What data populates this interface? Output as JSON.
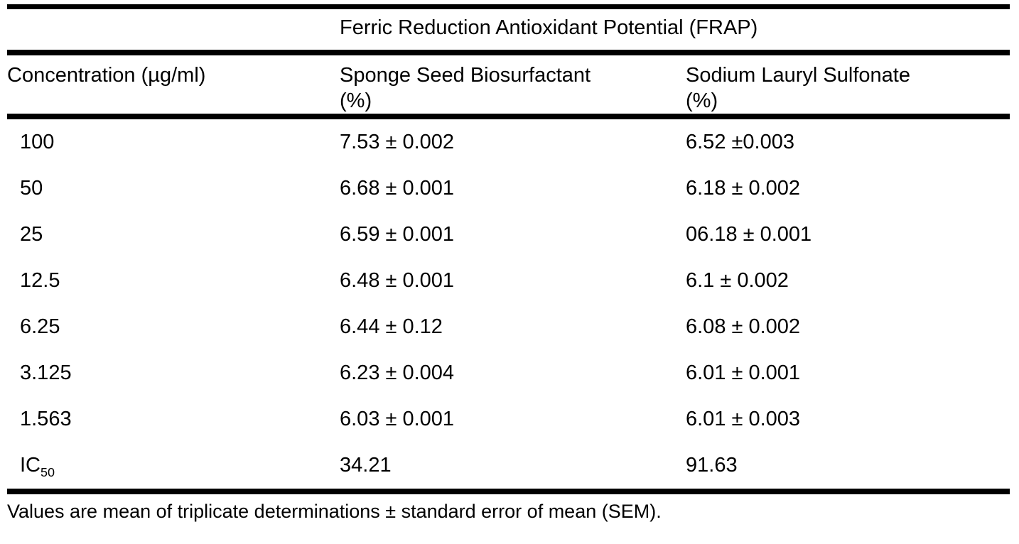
{
  "table": {
    "title": "Ferric Reduction Antioxidant Potential (FRAP)",
    "columns": [
      {
        "label": "Concentration (µg/ml)",
        "unit": ""
      },
      {
        "label": "Sponge Seed Biosurfactant",
        "unit": "(%)"
      },
      {
        "label": "Sodium Lauryl Sulfonate",
        "unit": "(%)"
      }
    ],
    "rows": [
      {
        "concentration": "100",
        "sponge": "7.53 ± 0.002",
        "sls": "6.52 ±0.003"
      },
      {
        "concentration": "50",
        "sponge": "6.68 ± 0.001",
        "sls": "6.18 ± 0.002"
      },
      {
        "concentration": "25",
        "sponge": "6.59 ± 0.001",
        "sls": "06.18 ± 0.001"
      },
      {
        "concentration": "12.5",
        "sponge": "6.48 ± 0.001",
        "sls": "6.1 ± 0.002"
      },
      {
        "concentration": "6.25",
        "sponge": "6.44 ± 0.12",
        "sls": "6.08 ± 0.002"
      },
      {
        "concentration": "3.125",
        "sponge": "6.23 ± 0.004",
        "sls": "6.01 ± 0.001"
      },
      {
        "concentration": "1.563",
        "sponge": "6.03 ± 0.001",
        "sls": "6.01 ± 0.003"
      },
      {
        "concentration": "IC",
        "concentration_sub": "50",
        "sponge": "34.21",
        "sls": "91.63"
      }
    ],
    "footnote": "Values are mean of triplicate determinations ± standard error of mean (SEM)."
  },
  "colors": {
    "text": "#000000",
    "background": "#ffffff",
    "rule": "#000000"
  }
}
